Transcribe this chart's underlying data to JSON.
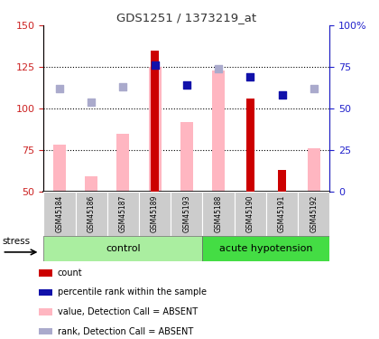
{
  "title": "GDS1251 / 1373219_at",
  "samples": [
    "GSM45184",
    "GSM45186",
    "GSM45187",
    "GSM45189",
    "GSM45193",
    "GSM45188",
    "GSM45190",
    "GSM45191",
    "GSM45192"
  ],
  "n_control": 5,
  "n_acute": 4,
  "group_control_name": "control",
  "group_acute_name": "acute hypotension",
  "red_bars": [
    null,
    null,
    null,
    135,
    null,
    null,
    106,
    63,
    null
  ],
  "pink_bars": [
    78,
    59,
    85,
    125,
    92,
    123,
    null,
    null,
    76
  ],
  "blue_squares_left": [
    null,
    null,
    null,
    126,
    114,
    null,
    119,
    108,
    null
  ],
  "lavender_squares_left": [
    112,
    104,
    113,
    null,
    null,
    124,
    null,
    null,
    112
  ],
  "ylim_left": [
    50,
    150
  ],
  "ylim_right": [
    0,
    100
  ],
  "yticks_left": [
    50,
    75,
    100,
    125,
    150
  ],
  "yticks_right": [
    0,
    25,
    50,
    75,
    100
  ],
  "hlines": [
    75,
    100,
    125
  ],
  "red_color": "#CC0000",
  "pink_color": "#FFB6C1",
  "blue_color": "#1111AA",
  "lavender_color": "#AAAACC",
  "left_axis_color": "#CC2222",
  "right_axis_color": "#2222CC",
  "control_color": "#AAEEA0",
  "acute_color": "#44DD44",
  "label_bg_color": "#CCCCCC",
  "bar_width": 0.4,
  "red_bar_width": 0.25,
  "stress_label": "stress"
}
